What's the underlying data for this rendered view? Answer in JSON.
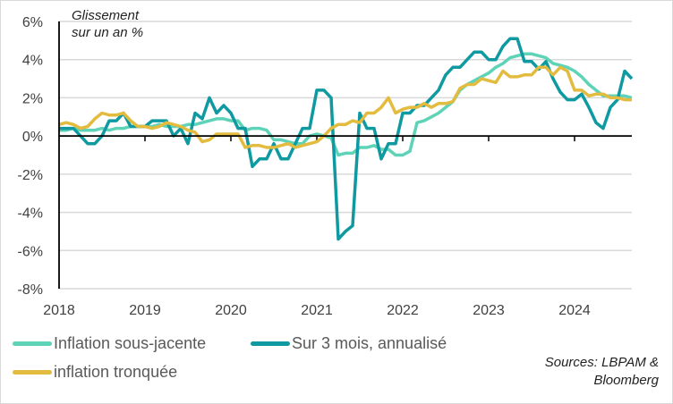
{
  "chart_data": {
    "type": "line",
    "title": "Glissement sur un an %",
    "title_lines": [
      "Glissement",
      "sur un an %"
    ],
    "xlabel": "",
    "ylabel": "",
    "x_start": "2018-01",
    "x_end": "2024-09",
    "x_frequency": "monthly",
    "x_ticks": [
      "2018",
      "2019",
      "2020",
      "2021",
      "2022",
      "2023",
      "2024"
    ],
    "y_ticks": [
      "6%",
      "4%",
      "2%",
      "0%",
      "-2%",
      "-4%",
      "-6%",
      "-8%"
    ],
    "ylim": [
      -8,
      6
    ],
    "grid": true,
    "legend_position": "bottom",
    "series": [
      {
        "name": "Inflation sous-jacente",
        "color": "#5fd3b8",
        "values": [
          0.3,
          0.3,
          0.4,
          0.3,
          0.3,
          0.3,
          0.4,
          0.3,
          0.4,
          0.4,
          0.5,
          0.5,
          0.5,
          0.5,
          0.6,
          0.5,
          0.5,
          0.5,
          0.6,
          0.6,
          0.7,
          0.8,
          0.9,
          0.9,
          0.8,
          0.8,
          0.3,
          0.4,
          0.4,
          0.3,
          -0.2,
          -0.2,
          -0.3,
          -0.4,
          -0.4,
          0.0,
          0.1,
          0.0,
          -0.1,
          -1.0,
          -0.9,
          -0.9,
          -0.6,
          -0.6,
          -0.5,
          -0.7,
          -0.7,
          -1.0,
          -1.0,
          -0.8,
          0.7,
          0.8,
          1.0,
          1.2,
          1.5,
          1.8,
          2.4,
          2.7,
          2.9,
          3.1,
          3.3,
          3.6,
          3.8,
          4.1,
          4.2,
          4.3,
          4.3,
          4.2,
          4.1,
          3.8,
          3.7,
          3.6,
          3.4,
          3.1,
          2.7,
          2.4,
          2.1,
          2.1,
          2.1,
          2.1,
          2.0
        ]
      },
      {
        "name": "Sur 3 mois, annualisé",
        "color": "#0e9aa0",
        "values": [
          0.4,
          0.4,
          0.4,
          0.0,
          -0.4,
          -0.4,
          0.0,
          0.8,
          0.8,
          1.2,
          0.5,
          0.5,
          0.5,
          0.8,
          0.8,
          0.8,
          0.0,
          0.4,
          -0.4,
          1.2,
          0.9,
          2.0,
          1.2,
          1.6,
          1.2,
          0.4,
          0.4,
          -1.6,
          -1.2,
          -1.2,
          -0.4,
          -1.2,
          -1.2,
          -0.4,
          0.4,
          0.4,
          2.4,
          2.4,
          2.0,
          -5.4,
          -5.0,
          -4.7,
          1.2,
          0.4,
          0.4,
          -1.2,
          -0.4,
          -0.4,
          1.2,
          1.2,
          1.6,
          1.6,
          2.0,
          2.4,
          3.2,
          3.6,
          3.6,
          4.0,
          4.4,
          4.4,
          4.0,
          4.0,
          4.7,
          5.1,
          5.1,
          3.9,
          3.9,
          3.5,
          3.9,
          3.0,
          2.3,
          1.9,
          1.9,
          2.2,
          1.5,
          0.7,
          0.4,
          1.5,
          1.9,
          3.4,
          3.0
        ]
      },
      {
        "name": "inflation tronquée",
        "color": "#e2bb3f",
        "values": [
          0.6,
          0.7,
          0.6,
          0.4,
          0.5,
          0.9,
          1.2,
          1.1,
          1.1,
          1.2,
          0.8,
          0.5,
          0.5,
          0.4,
          0.5,
          0.7,
          0.6,
          0.5,
          0.3,
          0.2,
          -0.3,
          -0.2,
          0.1,
          0.1,
          0.1,
          0.1,
          -0.6,
          -0.5,
          -0.5,
          -0.6,
          -0.6,
          -0.5,
          -0.4,
          -0.6,
          -0.5,
          -0.4,
          -0.3,
          0.0,
          0.4,
          0.6,
          0.6,
          0.8,
          0.7,
          1.2,
          1.2,
          1.5,
          2.0,
          1.2,
          1.4,
          1.5,
          1.5,
          1.7,
          1.5,
          1.7,
          1.7,
          1.8,
          2.5,
          2.7,
          2.7,
          3.0,
          2.9,
          2.8,
          3.4,
          3.1,
          3.1,
          3.2,
          3.2,
          3.6,
          3.6,
          3.2,
          3.6,
          3.4,
          2.4,
          2.4,
          2.1,
          2.2,
          2.2,
          2.0,
          2.0,
          1.9,
          1.9
        ]
      }
    ],
    "sources": [
      "Sources: LBPAM &",
      "Bloomberg"
    ]
  }
}
